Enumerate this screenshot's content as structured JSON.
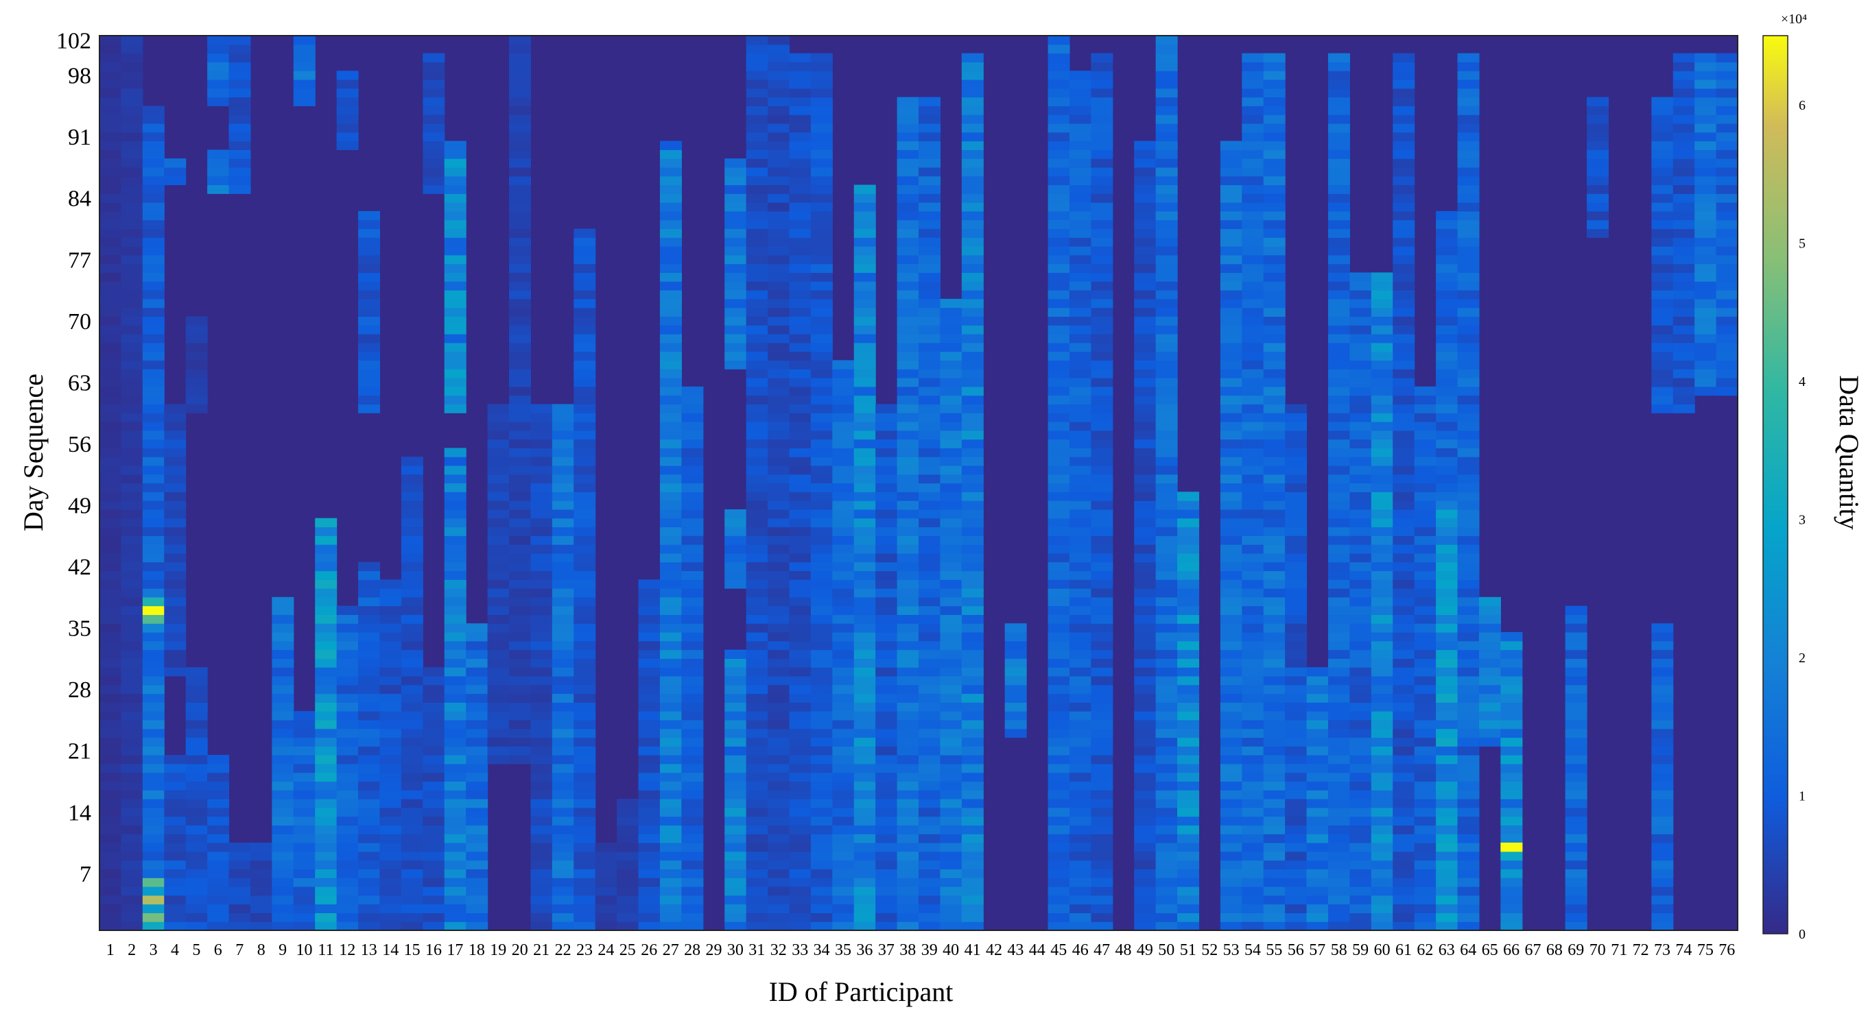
{
  "chart_data": {
    "type": "heatmap",
    "title": "",
    "xlabel": "ID of Participant",
    "ylabel": "Day Sequence",
    "colorbar_label": "Data Quantity",
    "colorbar_exponent": "×10⁴",
    "colorbar_ticks": [
      0,
      1,
      2,
      3,
      4,
      5,
      6
    ],
    "clim": [
      0,
      65000
    ],
    "colormap": "parula",
    "x_ticks": [
      1,
      2,
      3,
      4,
      5,
      6,
      7,
      8,
      9,
      10,
      11,
      12,
      13,
      14,
      15,
      16,
      17,
      18,
      19,
      20,
      21,
      22,
      23,
      24,
      25,
      26,
      27,
      28,
      29,
      30,
      31,
      32,
      33,
      34,
      35,
      36,
      37,
      38,
      39,
      40,
      41,
      42,
      43,
      44,
      45,
      46,
      47,
      48,
      49,
      50,
      51,
      52,
      53,
      54,
      55,
      56,
      57,
      58,
      59,
      60,
      61,
      62,
      63,
      64,
      65,
      66,
      67,
      68,
      69,
      70,
      71,
      72,
      73,
      74,
      75,
      76
    ],
    "y_ticks": [
      7,
      14,
      21,
      28,
      35,
      42,
      49,
      56,
      63,
      70,
      77,
      84,
      91,
      98,
      102
    ],
    "x_range": [
      1,
      76
    ],
    "y_range": [
      1,
      102
    ],
    "notes": "Approximate per-participant activity profiles read from the image (value ranges are in data-quantity units).",
    "participants": [
      {
        "id": 1,
        "bands": [
          [
            1,
            102,
            2000
          ]
        ]
      },
      {
        "id": 2,
        "bands": [
          [
            1,
            102,
            3000
          ]
        ]
      },
      {
        "id": 3,
        "bands": [
          [
            1,
            6,
            45000
          ],
          [
            7,
            35,
            15000
          ],
          [
            36,
            38,
            65000
          ],
          [
            39,
            55,
            12000
          ],
          [
            56,
            94,
            10000
          ]
        ]
      },
      {
        "id": 4,
        "bands": [
          [
            1,
            20,
            8000
          ],
          [
            30,
            60,
            6000
          ],
          [
            86,
            88,
            12000
          ]
        ]
      },
      {
        "id": 5,
        "bands": [
          [
            1,
            30,
            7000
          ],
          [
            60,
            70,
            4000
          ]
        ]
      },
      {
        "id": 6,
        "bands": [
          [
            1,
            20,
            8000
          ],
          [
            85,
            89,
            18000
          ],
          [
            95,
            102,
            12000
          ]
        ]
      },
      {
        "id": 7,
        "bands": [
          [
            1,
            10,
            6000
          ],
          [
            85,
            102,
            8000
          ]
        ]
      },
      {
        "id": 8,
        "bands": [
          [
            1,
            10,
            5000
          ]
        ]
      },
      {
        "id": 9,
        "bands": [
          [
            1,
            38,
            14000
          ]
        ]
      },
      {
        "id": 10,
        "bands": [
          [
            1,
            25,
            12000
          ],
          [
            95,
            102,
            14000
          ]
        ]
      },
      {
        "id": 11,
        "bands": [
          [
            1,
            47,
            22000
          ]
        ]
      },
      {
        "id": 12,
        "bands": [
          [
            1,
            37,
            12000
          ],
          [
            90,
            98,
            8000
          ]
        ]
      },
      {
        "id": 13,
        "bands": [
          [
            1,
            42,
            10000
          ],
          [
            60,
            82,
            9000
          ]
        ]
      },
      {
        "id": 14,
        "bands": [
          [
            1,
            40,
            8000
          ]
        ]
      },
      {
        "id": 15,
        "bands": [
          [
            1,
            54,
            7000
          ]
        ]
      },
      {
        "id": 16,
        "bands": [
          [
            1,
            30,
            7000
          ],
          [
            85,
            100,
            6000
          ]
        ]
      },
      {
        "id": 17,
        "bands": [
          [
            1,
            55,
            17000
          ],
          [
            60,
            90,
            20000
          ]
        ]
      },
      {
        "id": 18,
        "bands": [
          [
            1,
            35,
            14000
          ]
        ]
      },
      {
        "id": 19,
        "bands": [
          [
            20,
            60,
            5000
          ]
        ]
      },
      {
        "id": 20,
        "bands": [
          [
            20,
            102,
            5000
          ]
        ]
      },
      {
        "id": 21,
        "bands": [
          [
            1,
            60,
            6000
          ]
        ]
      },
      {
        "id": 22,
        "bands": [
          [
            1,
            60,
            14000
          ]
        ]
      },
      {
        "id": 23,
        "bands": [
          [
            1,
            80,
            9000
          ]
        ]
      },
      {
        "id": 24,
        "bands": [
          [
            1,
            10,
            4000
          ]
        ]
      },
      {
        "id": 25,
        "bands": [
          [
            1,
            15,
            4000
          ]
        ]
      },
      {
        "id": 26,
        "bands": [
          [
            1,
            40,
            8000
          ]
        ]
      },
      {
        "id": 27,
        "bands": [
          [
            1,
            90,
            17000
          ]
        ]
      },
      {
        "id": 28,
        "bands": [
          [
            1,
            62,
            11000
          ]
        ]
      },
      {
        "id": 30,
        "bands": [
          [
            1,
            32,
            18000
          ],
          [
            40,
            48,
            16000
          ],
          [
            65,
            88,
            16000
          ]
        ]
      },
      {
        "id": 31,
        "bands": [
          [
            1,
            102,
            7000
          ]
        ]
      },
      {
        "id": 32,
        "bands": [
          [
            1,
            102,
            6000
          ]
        ]
      },
      {
        "id": 33,
        "bands": [
          [
            1,
            100,
            7000
          ]
        ]
      },
      {
        "id": 34,
        "bands": [
          [
            1,
            100,
            9000
          ]
        ]
      },
      {
        "id": 35,
        "bands": [
          [
            1,
            65,
            13000
          ]
        ]
      },
      {
        "id": 36,
        "bands": [
          [
            1,
            85,
            19000
          ]
        ]
      },
      {
        "id": 37,
        "bands": [
          [
            1,
            60,
            9000
          ]
        ]
      },
      {
        "id": 38,
        "bands": [
          [
            1,
            95,
            15000
          ]
        ]
      },
      {
        "id": 39,
        "bands": [
          [
            1,
            95,
            12000
          ]
        ]
      },
      {
        "id": 40,
        "bands": [
          [
            1,
            72,
            15000
          ]
        ]
      },
      {
        "id": 41,
        "bands": [
          [
            1,
            100,
            18000
          ]
        ]
      },
      {
        "id": 43,
        "bands": [
          [
            23,
            35,
            16000
          ]
        ]
      },
      {
        "id": 45,
        "bands": [
          [
            1,
            102,
            12000
          ]
        ]
      },
      {
        "id": 46,
        "bands": [
          [
            1,
            98,
            11000
          ]
        ]
      },
      {
        "id": 47,
        "bands": [
          [
            1,
            100,
            9000
          ]
        ]
      },
      {
        "id": 49,
        "bands": [
          [
            1,
            90,
            7000
          ]
        ]
      },
      {
        "id": 50,
        "bands": [
          [
            1,
            102,
            13000
          ]
        ]
      },
      {
        "id": 51,
        "bands": [
          [
            1,
            50,
            20000
          ]
        ]
      },
      {
        "id": 53,
        "bands": [
          [
            1,
            90,
            14000
          ]
        ]
      },
      {
        "id": 54,
        "bands": [
          [
            1,
            100,
            13000
          ]
        ]
      },
      {
        "id": 55,
        "bands": [
          [
            1,
            100,
            14000
          ]
        ]
      },
      {
        "id": 56,
        "bands": [
          [
            1,
            60,
            9000
          ]
        ]
      },
      {
        "id": 57,
        "bands": [
          [
            1,
            30,
            16000
          ]
        ]
      },
      {
        "id": 58,
        "bands": [
          [
            1,
            100,
            12000
          ]
        ]
      },
      {
        "id": 59,
        "bands": [
          [
            1,
            75,
            11000
          ]
        ]
      },
      {
        "id": 60,
        "bands": [
          [
            1,
            75,
            20000
          ]
        ]
      },
      {
        "id": 61,
        "bands": [
          [
            1,
            100,
            8000
          ]
        ]
      },
      {
        "id": 62,
        "bands": [
          [
            1,
            62,
            10000
          ]
        ]
      },
      {
        "id": 63,
        "bands": [
          [
            1,
            50,
            22000
          ],
          [
            50,
            82,
            12000
          ]
        ]
      },
      {
        "id": 64,
        "bands": [
          [
            1,
            100,
            12000
          ]
        ]
      },
      {
        "id": 65,
        "bands": [
          [
            22,
            38,
            18000
          ]
        ]
      },
      {
        "id": 66,
        "bands": [
          [
            1,
            34,
            20000
          ],
          [
            9,
            10,
            50000
          ]
        ]
      },
      {
        "id": 69,
        "bands": [
          [
            1,
            37,
            13000
          ]
        ]
      },
      {
        "id": 70,
        "bands": [
          [
            80,
            95,
            8000
          ]
        ]
      },
      {
        "id": 73,
        "bands": [
          [
            1,
            35,
            12000
          ],
          [
            60,
            95,
            9000
          ]
        ]
      },
      {
        "id": 74,
        "bands": [
          [
            60,
            100,
            8000
          ]
        ]
      },
      {
        "id": 75,
        "bands": [
          [
            62,
            100,
            15000
          ]
        ]
      },
      {
        "id": 76,
        "bands": [
          [
            62,
            100,
            12000
          ]
        ]
      }
    ]
  }
}
